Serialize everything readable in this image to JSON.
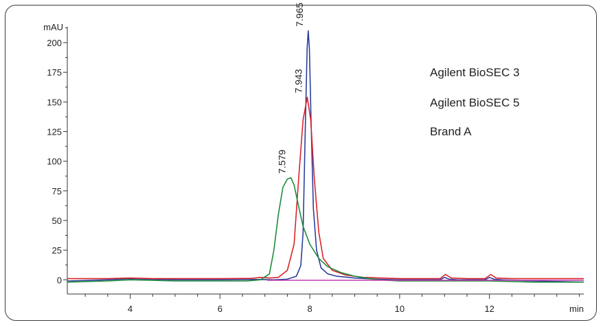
{
  "chart_data": {
    "type": "line",
    "title": "",
    "ylabel": "mAU",
    "xlabel": "min",
    "xlim": [
      2.6,
      14.1
    ],
    "ylim": [
      -12,
      218
    ],
    "x_ticks": [
      4,
      6,
      8,
      10,
      12
    ],
    "x_tick_labels": [
      "4",
      "6",
      "8",
      "10",
      "12"
    ],
    "y_ticks": [
      0,
      25,
      50,
      75,
      100,
      125,
      150,
      175,
      200
    ],
    "y_tick_labels": [
      "0",
      "25",
      "50",
      "75",
      "100",
      "125",
      "150",
      "175",
      "200"
    ],
    "legend": {
      "placement": "top-right",
      "entries": [
        "Agilent BioSEC 3",
        "Agilent BioSEC 5",
        "Brand A"
      ]
    },
    "peak_labels": [
      {
        "text": "7.965",
        "x": 7.965,
        "y": 210
      },
      {
        "text": "7.943",
        "x": 7.943,
        "y": 154
      },
      {
        "text": "7.579",
        "x": 7.579,
        "y": 86
      }
    ],
    "series": [
      {
        "color": "#2b3f9a",
        "x": [
          2.6,
          3.5,
          4.0,
          4.5,
          5.0,
          6.0,
          6.8,
          7.2,
          7.5,
          7.7,
          7.8,
          7.85,
          7.9,
          7.94,
          7.965,
          7.99,
          8.03,
          8.08,
          8.15,
          8.25,
          8.4,
          8.6,
          9.0,
          9.5,
          10.0,
          10.5,
          10.9,
          11.0,
          11.1,
          11.3,
          11.9,
          12.0,
          12.1,
          12.3,
          13.0,
          14.1
        ],
        "y": [
          -1,
          0,
          1,
          0.5,
          0,
          0,
          0.3,
          0,
          0.5,
          3,
          12,
          40,
          130,
          195,
          210,
          195,
          130,
          60,
          25,
          10,
          5,
          3,
          1.5,
          0.5,
          0,
          0,
          0,
          2,
          0.5,
          0,
          0,
          2,
          0.5,
          0,
          -1,
          -2
        ]
      },
      {
        "color": "#d8232a",
        "x": [
          2.6,
          3.5,
          4.0,
          4.5,
          5.0,
          6.0,
          6.7,
          6.9,
          7.1,
          7.3,
          7.5,
          7.65,
          7.75,
          7.85,
          7.943,
          8.02,
          8.1,
          8.2,
          8.3,
          8.5,
          8.8,
          9.2,
          10.0,
          10.9,
          11.02,
          11.15,
          11.5,
          11.9,
          12.03,
          12.15,
          12.5,
          13.0,
          14.1
        ],
        "y": [
          1,
          1,
          1.5,
          1,
          1,
          1,
          1.2,
          2,
          1.5,
          2,
          8,
          30,
          85,
          135,
          154,
          135,
          85,
          40,
          18,
          8,
          4,
          2,
          1,
          1,
          4.5,
          1.5,
          1,
          1,
          4.5,
          1.5,
          1,
          1,
          1
        ]
      },
      {
        "color": "#1e8a3c",
        "x": [
          2.6,
          3.5,
          4.0,
          4.5,
          5.0,
          6.0,
          6.6,
          6.9,
          7.1,
          7.2,
          7.3,
          7.4,
          7.5,
          7.579,
          7.65,
          7.75,
          7.85,
          8.0,
          8.2,
          8.4,
          8.7,
          9.0,
          9.5,
          10.0,
          11.0,
          12.0,
          13.0,
          14.1
        ],
        "y": [
          -2,
          -1,
          0,
          -0.5,
          -1,
          -1,
          -1,
          0,
          5,
          25,
          55,
          78,
          85,
          86,
          80,
          62,
          45,
          30,
          18,
          11,
          6,
          3,
          0,
          -1,
          -1,
          -1,
          -2,
          -2
        ]
      },
      {
        "color": "#c03ab0",
        "x": [
          7.05,
          14.1
        ],
        "y": [
          -0.4,
          -0.4
        ]
      }
    ]
  }
}
